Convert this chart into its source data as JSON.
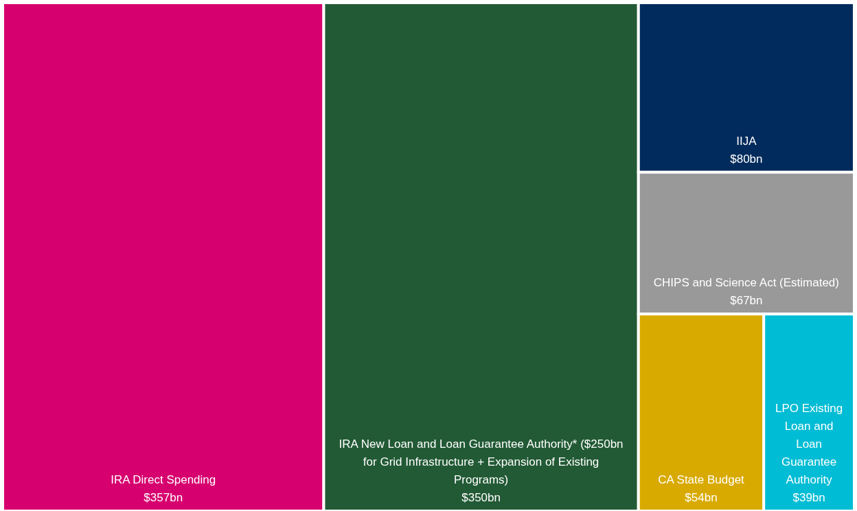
{
  "chart_data": {
    "type": "other",
    "categories": [
      "IRA Direct Spending",
      "IRA New Loan and Loan Guarantee Authority* ($250bn for Grid Infrastructure + Expansion of Existing Programs)",
      "IIJA",
      "CHIPS and Science Act (Estimated)",
      "CA State Budget",
      "LPO Existing Loan and Loan Guarantee Authority"
    ],
    "values": [
      357,
      350,
      80,
      67,
      54,
      39
    ],
    "colors": [
      "#d6006e",
      "#225a35",
      "#002b5c",
      "#999999",
      "#d8aa00",
      "#00bcd4"
    ],
    "value_labels": [
      "$357bn",
      "$350bn",
      "$80bn",
      "$67bn",
      "$54bn",
      "$39bn"
    ]
  }
}
